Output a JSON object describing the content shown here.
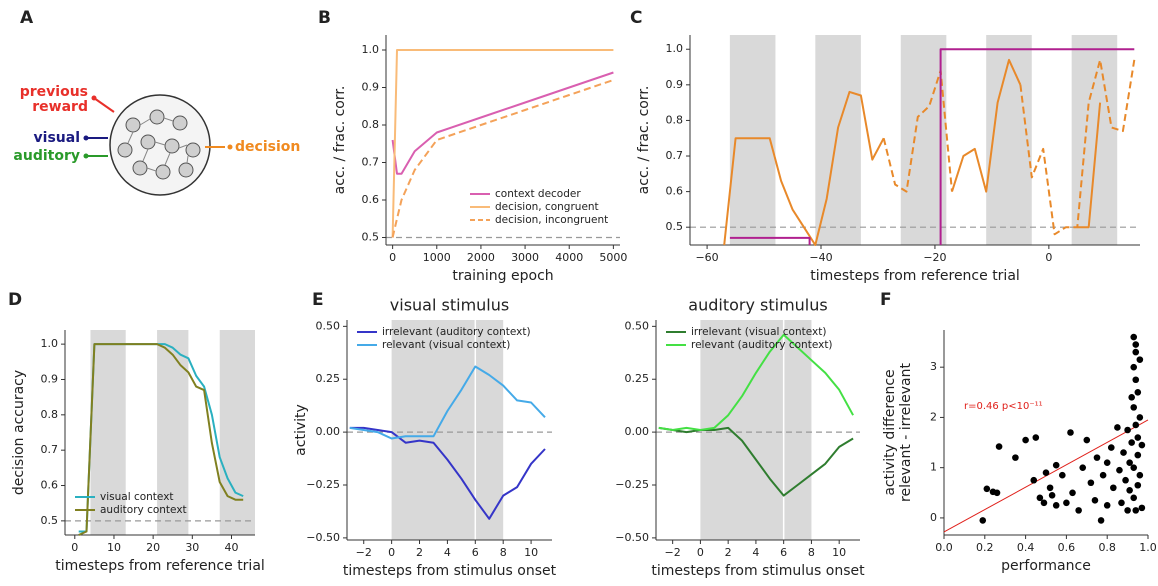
{
  "diagram": {
    "panel": "A",
    "previous_reward": [
      "previous",
      "reward"
    ],
    "visual": "visual",
    "auditory": "auditory",
    "output": "decision"
  },
  "chart_data": [
    {
      "type": "line",
      "panel": "B",
      "xlabel": "training epoch",
      "ylabel": "acc. / frac. corr.",
      "x": [
        0,
        100,
        200,
        500,
        1000,
        2000,
        3000,
        4000,
        5000
      ],
      "series": [
        {
          "name": "context decoder",
          "color": "#d95fb0",
          "values": [
            0.76,
            0.67,
            0.67,
            0.73,
            0.78,
            0.82,
            0.86,
            0.9,
            0.94
          ]
        },
        {
          "name": "decision, congruent",
          "color": "#f9bb78",
          "values": [
            0.5,
            1.0,
            1.0,
            1.0,
            1.0,
            1.0,
            1.0,
            1.0,
            1.0
          ]
        },
        {
          "name": "decision, incongruent",
          "color": "#f4a259",
          "dash": true,
          "values": [
            0.5,
            0.55,
            0.6,
            0.68,
            0.76,
            0.8,
            0.84,
            0.88,
            0.92
          ]
        }
      ],
      "xlim": [
        -150,
        5150
      ],
      "ylim": [
        0.48,
        1.04
      ],
      "xticks": [
        0,
        1000,
        2000,
        3000,
        4000,
        5000
      ],
      "yticks": [
        0.5,
        0.6,
        0.7,
        0.8,
        0.9,
        {
          "value": 1,
          "label": "1.0"
        }
      ],
      "hline": 0.5,
      "legend": "lower right"
    },
    {
      "type": "line",
      "panel": "C",
      "xlabel": "timesteps from reference trial",
      "ylabel": "acc. / frac. corr.",
      "x": [
        -57,
        -55,
        -53,
        -51,
        -49,
        -47,
        -45,
        -43,
        -41,
        -39,
        -37,
        -35,
        -33,
        -31,
        -29,
        -27,
        -25,
        -23,
        -21,
        -19,
        -17,
        -15,
        -13,
        -11,
        -9,
        -7,
        -5,
        -3,
        -1,
        1,
        3,
        5,
        7,
        9,
        11,
        13,
        15
      ],
      "series": [
        {
          "color": "#e8892a",
          "values": [
            0.45,
            0.75,
            0.75,
            0.75,
            0.75,
            0.63,
            0.55,
            0.5,
            0.45,
            0.58,
            0.78,
            0.88,
            0.87,
            0.69,
            0.75,
            null,
            null,
            null,
            null,
            null,
            0.6,
            0.7,
            0.72,
            0.6,
            0.85,
            0.97,
            0.9,
            null,
            null,
            null,
            null,
            0.5,
            0.5,
            0.85,
            null,
            null,
            null
          ]
        },
        {
          "color": "#e8892a",
          "dash": true,
          "values": [
            null,
            null,
            null,
            null,
            null,
            null,
            null,
            null,
            null,
            null,
            null,
            null,
            null,
            null,
            0.75,
            0.62,
            0.6,
            0.81,
            0.84,
            0.94,
            0.6,
            null,
            null,
            null,
            null,
            null,
            0.9,
            0.64,
            0.72,
            0.48,
            0.5,
            0.5,
            0.85,
            0.97,
            0.78,
            0.77,
            0.97
          ]
        },
        {
          "color": "#b0208f",
          "x": [
            -56,
            -42,
            -42,
            -19,
            -19,
            -19,
            15
          ],
          "values": [
            0.47,
            0.47,
            0.45,
            null,
            0.45,
            1.0,
            1.0
          ]
        }
      ],
      "bands": [
        [
          -56,
          -48
        ],
        [
          -41,
          -33
        ],
        [
          -26,
          -18
        ],
        [
          -11,
          -3
        ],
        [
          4,
          12
        ]
      ],
      "xlim": [
        -63,
        16
      ],
      "ylim": [
        0.45,
        1.04
      ],
      "xticks": [
        {
          "value": -60,
          "label": "−60"
        },
        {
          "value": -40,
          "label": "−40"
        },
        {
          "value": -20,
          "label": "−20"
        },
        0
      ],
      "yticks": [
        0.5,
        0.6,
        0.7,
        0.8,
        0.9,
        {
          "value": 1,
          "label": "1.0"
        }
      ],
      "hline": 0.5
    },
    {
      "type": "line",
      "panel": "D",
      "xlabel": "timesteps from reference trial",
      "ylabel": "decision accuracy",
      "x": [
        1,
        3,
        5,
        7,
        9,
        11,
        13,
        15,
        17,
        19,
        21,
        23,
        25,
        27,
        29,
        31,
        33,
        35,
        37,
        39,
        41,
        43
      ],
      "series": [
        {
          "name": "visual context",
          "color": "#2ab0c0",
          "values": [
            0.47,
            0.47,
            1.0,
            1.0,
            1.0,
            1.0,
            1.0,
            1.0,
            1.0,
            1.0,
            1.0,
            1.0,
            0.99,
            0.97,
            0.96,
            0.91,
            0.88,
            0.8,
            0.68,
            0.62,
            0.58,
            0.57
          ]
        },
        {
          "name": "auditory context",
          "color": "#808020",
          "values": [
            0.46,
            0.47,
            1.0,
            1.0,
            1.0,
            1.0,
            1.0,
            1.0,
            1.0,
            1.0,
            1.0,
            0.99,
            0.97,
            0.94,
            0.92,
            0.88,
            0.87,
            0.72,
            0.61,
            0.57,
            0.56,
            0.56
          ]
        }
      ],
      "bands": [
        [
          4,
          13
        ],
        [
          21,
          29
        ],
        [
          37,
          46
        ]
      ],
      "xlim": [
        -2.5,
        46
      ],
      "ylim": [
        0.46,
        1.04
      ],
      "xticks": [
        0,
        10,
        20,
        30,
        40
      ],
      "yticks": [
        0.5,
        0.6,
        0.7,
        0.8,
        0.9,
        {
          "value": 1,
          "label": "1.0"
        }
      ],
      "hline": 0.5,
      "legend": "lower left"
    },
    {
      "type": "line",
      "panel": "E",
      "title": "visual stimulus",
      "xlabel": "timesteps from stimulus onset",
      "ylabel": "activity",
      "x": [
        -3,
        -2,
        -1,
        0,
        1,
        2,
        3,
        4,
        5,
        6,
        7,
        8,
        9,
        10,
        11
      ],
      "series": [
        {
          "name": "irrelevant (auditory context)",
          "color": "#3535c8",
          "values": [
            0.02,
            0.02,
            0.01,
            0.0,
            -0.05,
            -0.04,
            -0.05,
            -0.13,
            -0.22,
            -0.32,
            -0.41,
            -0.3,
            -0.26,
            -0.15,
            -0.08
          ]
        },
        {
          "name": "relevant (visual context)",
          "color": "#45aae8",
          "values": [
            0.02,
            0.01,
            0.0,
            -0.03,
            -0.02,
            -0.02,
            -0.02,
            0.1,
            0.2,
            0.31,
            0.27,
            0.22,
            0.15,
            0.14,
            0.07
          ]
        }
      ],
      "bands": [
        [
          0,
          8
        ]
      ],
      "vline": 6,
      "xlim": [
        -3.2,
        11.5
      ],
      "ylim": [
        -0.51,
        0.53
      ],
      "xticks": [
        {
          "value": -2,
          "label": "−2"
        },
        0,
        2,
        4,
        6,
        8,
        10
      ],
      "yticks": [
        {
          "value": -0.5,
          "label": "−0.50"
        },
        {
          "value": -0.25,
          "label": "−0.25"
        },
        {
          "value": 0,
          "label": "0.00"
        },
        {
          "value": 0.25,
          "label": "0.25"
        },
        {
          "value": 0.5,
          "label": "0.50"
        }
      ],
      "hline": 0,
      "legend": "upper left"
    },
    {
      "type": "line",
      "title": "auditory stimulus",
      "xlabel": "timesteps from stimulus onset",
      "x": [
        -3,
        -2,
        -1,
        0,
        1,
        2,
        3,
        4,
        5,
        6,
        7,
        8,
        9,
        10,
        11
      ],
      "series": [
        {
          "name": "irrelevant (visual context)",
          "color": "#2f7d2f",
          "values": [
            0.02,
            0.01,
            0.0,
            0.01,
            0.01,
            0.02,
            -0.04,
            -0.13,
            -0.22,
            -0.3,
            -0.25,
            -0.2,
            -0.15,
            -0.07,
            -0.03
          ]
        },
        {
          "name": "relevant (auditory context)",
          "color": "#44e044",
          "values": [
            0.02,
            0.01,
            0.02,
            0.01,
            0.02,
            0.08,
            0.17,
            0.28,
            0.38,
            0.46,
            0.4,
            0.34,
            0.28,
            0.2,
            0.08
          ]
        }
      ],
      "bands": [
        [
          0,
          8
        ]
      ],
      "vline": 6,
      "xlim": [
        -3.2,
        11.5
      ],
      "ylim": [
        -0.51,
        0.53
      ],
      "xticks": [
        {
          "value": -2,
          "label": "−2"
        },
        0,
        2,
        4,
        6,
        8,
        10
      ],
      "yticks": [
        {
          "value": -0.5,
          "label": "−0.50"
        },
        {
          "value": -0.25,
          "label": "−0.25"
        },
        {
          "value": 0,
          "label": "0.00"
        },
        {
          "value": 0.25,
          "label": "0.25"
        },
        {
          "value": 0.5,
          "label": "0.50"
        }
      ],
      "hline": 0,
      "legend": "upper left"
    },
    {
      "type": "scatter",
      "panel": "F",
      "xlabel": "performance",
      "ylabel": [
        "activity difference",
        "relevant - irrelevant"
      ],
      "annotation": "r=0.46 p<10⁻¹¹",
      "color": "#000000",
      "fit": [
        -0.28,
        2.23
      ],
      "fit_color": "#e0201a",
      "x": [
        0.19,
        0.21,
        0.24,
        0.26,
        0.27,
        0.35,
        0.4,
        0.44,
        0.45,
        0.47,
        0.49,
        0.5,
        0.52,
        0.53,
        0.55,
        0.55,
        0.58,
        0.6,
        0.62,
        0.63,
        0.66,
        0.68,
        0.7,
        0.72,
        0.74,
        0.75,
        0.77,
        0.78,
        0.8,
        0.8,
        0.82,
        0.83,
        0.85,
        0.86,
        0.87,
        0.88,
        0.89,
        0.9,
        0.9,
        0.91,
        0.91,
        0.92,
        0.92,
        0.93,
        0.93,
        0.93,
        0.93,
        0.93,
        0.94,
        0.94,
        0.94,
        0.94,
        0.94,
        0.95,
        0.95,
        0.95,
        0.95,
        0.96,
        0.96,
        0.96,
        0.97,
        0.97
      ],
      "values": [
        -0.05,
        0.58,
        0.52,
        0.5,
        1.42,
        1.2,
        1.55,
        0.75,
        1.6,
        0.4,
        0.3,
        0.9,
        0.6,
        0.45,
        0.25,
        1.05,
        0.85,
        0.3,
        1.7,
        0.5,
        0.15,
        1.0,
        1.55,
        0.7,
        0.35,
        1.2,
        -0.05,
        0.85,
        1.1,
        0.25,
        1.4,
        0.6,
        1.8,
        0.95,
        0.3,
        1.3,
        0.75,
        1.75,
        0.15,
        1.1,
        0.55,
        2.4,
        1.5,
        3.6,
        3.0,
        2.2,
        1.0,
        0.4,
        3.45,
        3.3,
        2.75,
        1.85,
        0.15,
        2.5,
        1.6,
        1.25,
        0.65,
        3.15,
        2.0,
        0.85,
        1.45,
        0.2
      ],
      "xlim": [
        0,
        1
      ],
      "ylim": [
        -0.34,
        3.74
      ],
      "xticks": [
        {
          "value": 0,
          "label": "0.0"
        },
        0.2,
        0.4,
        0.6,
        0.8,
        {
          "value": 1,
          "label": "1.0"
        }
      ],
      "yticks": [
        0,
        1,
        2,
        3
      ]
    }
  ]
}
